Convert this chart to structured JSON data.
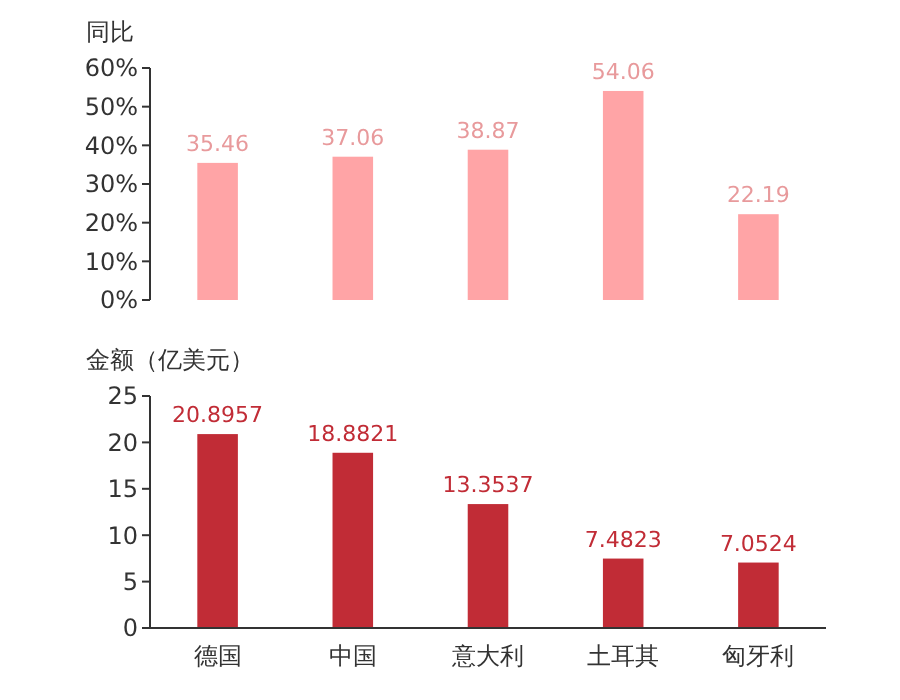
{
  "chart_data": [
    {
      "type": "bar",
      "ylabel": "同比",
      "categories": [
        null,
        null,
        null,
        null,
        null
      ],
      "values": [
        35.46,
        37.06,
        38.87,
        54.06,
        22.19
      ],
      "color": "#ffa4a6",
      "ylim": [
        0,
        60
      ],
      "yticks": [
        {
          "value": 0,
          "label": "0%"
        },
        {
          "value": 10,
          "label": "10%"
        },
        {
          "value": 20,
          "label": "20%"
        },
        {
          "value": 30,
          "label": "30%"
        },
        {
          "value": 40,
          "label": "40%"
        },
        {
          "value": 50,
          "label": "50%"
        },
        {
          "value": 60,
          "label": "60%"
        }
      ],
      "data_labels": true,
      "tick_labels": "y"
    },
    {
      "type": "bar",
      "ylabel": "金额（亿美元）",
      "categories": [
        "德国",
        "中国",
        "意大利",
        "土耳其",
        "匈牙利"
      ],
      "values": [
        20.8957,
        18.8821,
        13.3537,
        7.4823,
        7.0524
      ],
      "color": "#c12c36",
      "ylim": [
        0,
        25
      ],
      "yticks": [
        0,
        5,
        10,
        15,
        20,
        25
      ],
      "data_labels": true
    }
  ]
}
